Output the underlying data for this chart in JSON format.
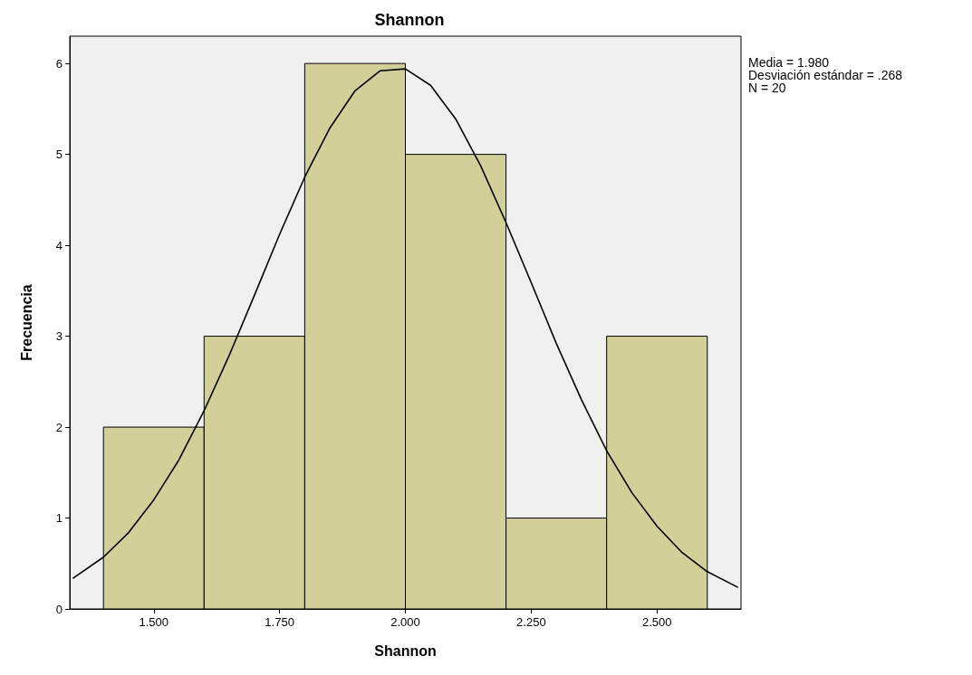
{
  "chart_data": {
    "type": "histogram",
    "title": "Shannon",
    "xlabel": "Shannon",
    "ylabel": "Frecuencia",
    "bins": [
      1.4,
      1.6,
      1.8,
      2.0,
      2.2,
      2.4,
      2.6
    ],
    "values": [
      2,
      3,
      6,
      5,
      1,
      3
    ],
    "color": "#d3cf98",
    "xlim": [
      1.333,
      2.667
    ],
    "xticks": [
      {
        "value": 1.5,
        "label": "1.500"
      },
      {
        "value": 1.75,
        "label": "1.750"
      },
      {
        "value": 2.0,
        "label": "2.000"
      },
      {
        "value": 2.25,
        "label": "2.250"
      },
      {
        "value": 2.5,
        "label": "2.500"
      }
    ],
    "ylim": [
      0,
      6.3
    ],
    "yticks": [
      0,
      1,
      2,
      3,
      4,
      5,
      6
    ],
    "grid": false,
    "series": [
      {
        "type": "line",
        "color": "#000000",
        "x": [
          1.34,
          1.4,
          1.45,
          1.5,
          1.55,
          1.6,
          1.65,
          1.7,
          1.75,
          1.8,
          1.85,
          1.9,
          1.95,
          2.0,
          2.05,
          2.1,
          2.15,
          2.2,
          2.25,
          2.3,
          2.35,
          2.4,
          2.45,
          2.5,
          2.55,
          2.6,
          2.66
        ],
        "values": [
          0.34,
          0.57,
          0.84,
          1.2,
          1.64,
          2.18,
          2.79,
          3.45,
          4.12,
          4.75,
          5.29,
          5.7,
          5.92,
          5.94,
          5.76,
          5.39,
          4.87,
          4.25,
          3.59,
          2.92,
          2.3,
          1.74,
          1.28,
          0.91,
          0.62,
          0.41,
          0.24
        ]
      }
    ],
    "annotations": [
      "Media = 1.980",
      "Desviación estándar = .268",
      "N = 20"
    ]
  }
}
